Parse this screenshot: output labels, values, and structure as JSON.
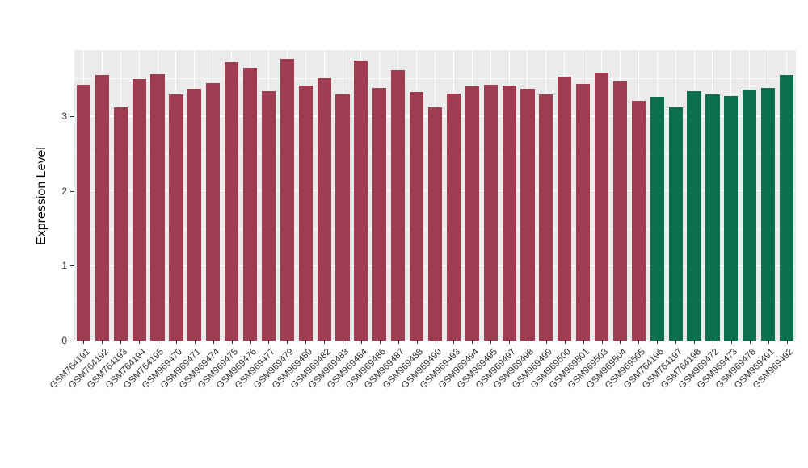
{
  "chart_data": {
    "type": "bar",
    "title": "",
    "xlabel": "",
    "ylabel": "Expression Level",
    "ylim": [
      0,
      3.885
    ],
    "yticks": [
      0,
      1,
      2,
      3
    ],
    "grid": "on",
    "legend_position": "none",
    "panel_background": "#EBEBEB",
    "gridline_color": "#ffffff",
    "group_colors": {
      "groupA": "#9E3D51",
      "groupB": "#0B6E4E"
    },
    "bars": [
      {
        "label": "GSM764191",
        "value": 3.42,
        "group": "groupA"
      },
      {
        "label": "GSM764192",
        "value": 3.55,
        "group": "groupA"
      },
      {
        "label": "GSM764193",
        "value": 3.12,
        "group": "groupA"
      },
      {
        "label": "GSM764194",
        "value": 3.5,
        "group": "groupA"
      },
      {
        "label": "GSM764195",
        "value": 3.56,
        "group": "groupA"
      },
      {
        "label": "GSM969470",
        "value": 3.29,
        "group": "groupA"
      },
      {
        "label": "GSM969471",
        "value": 3.37,
        "group": "groupA"
      },
      {
        "label": "GSM969474",
        "value": 3.44,
        "group": "groupA"
      },
      {
        "label": "GSM969475",
        "value": 3.72,
        "group": "groupA"
      },
      {
        "label": "GSM969476",
        "value": 3.65,
        "group": "groupA"
      },
      {
        "label": "GSM969477",
        "value": 3.34,
        "group": "groupA"
      },
      {
        "label": "GSM969479",
        "value": 3.77,
        "group": "groupA"
      },
      {
        "label": "GSM969480",
        "value": 3.41,
        "group": "groupA"
      },
      {
        "label": "GSM969482",
        "value": 3.51,
        "group": "groupA"
      },
      {
        "label": "GSM969483",
        "value": 3.29,
        "group": "groupA"
      },
      {
        "label": "GSM969484",
        "value": 3.74,
        "group": "groupA"
      },
      {
        "label": "GSM969486",
        "value": 3.38,
        "group": "groupA"
      },
      {
        "label": "GSM969487",
        "value": 3.62,
        "group": "groupA"
      },
      {
        "label": "GSM969488",
        "value": 3.32,
        "group": "groupA"
      },
      {
        "label": "GSM969490",
        "value": 3.12,
        "group": "groupA"
      },
      {
        "label": "GSM969493",
        "value": 3.3,
        "group": "groupA"
      },
      {
        "label": "GSM969494",
        "value": 3.4,
        "group": "groupA"
      },
      {
        "label": "GSM969495",
        "value": 3.42,
        "group": "groupA"
      },
      {
        "label": "GSM969497",
        "value": 3.41,
        "group": "groupA"
      },
      {
        "label": "GSM969498",
        "value": 3.37,
        "group": "groupA"
      },
      {
        "label": "GSM969499",
        "value": 3.29,
        "group": "groupA"
      },
      {
        "label": "GSM969500",
        "value": 3.53,
        "group": "groupA"
      },
      {
        "label": "GSM969501",
        "value": 3.43,
        "group": "groupA"
      },
      {
        "label": "GSM969503",
        "value": 3.58,
        "group": "groupA"
      },
      {
        "label": "GSM969504",
        "value": 3.46,
        "group": "groupA"
      },
      {
        "label": "GSM969505",
        "value": 3.21,
        "group": "groupA"
      },
      {
        "label": "GSM764196",
        "value": 3.26,
        "group": "groupB"
      },
      {
        "label": "GSM764197",
        "value": 3.12,
        "group": "groupB"
      },
      {
        "label": "GSM764198",
        "value": 3.33,
        "group": "groupB"
      },
      {
        "label": "GSM969472",
        "value": 3.29,
        "group": "groupB"
      },
      {
        "label": "GSM969473",
        "value": 3.27,
        "group": "groupB"
      },
      {
        "label": "GSM969478",
        "value": 3.36,
        "group": "groupB"
      },
      {
        "label": "GSM969491",
        "value": 3.38,
        "group": "groupB"
      },
      {
        "label": "GSM969492",
        "value": 3.55,
        "group": "groupB"
      }
    ]
  }
}
